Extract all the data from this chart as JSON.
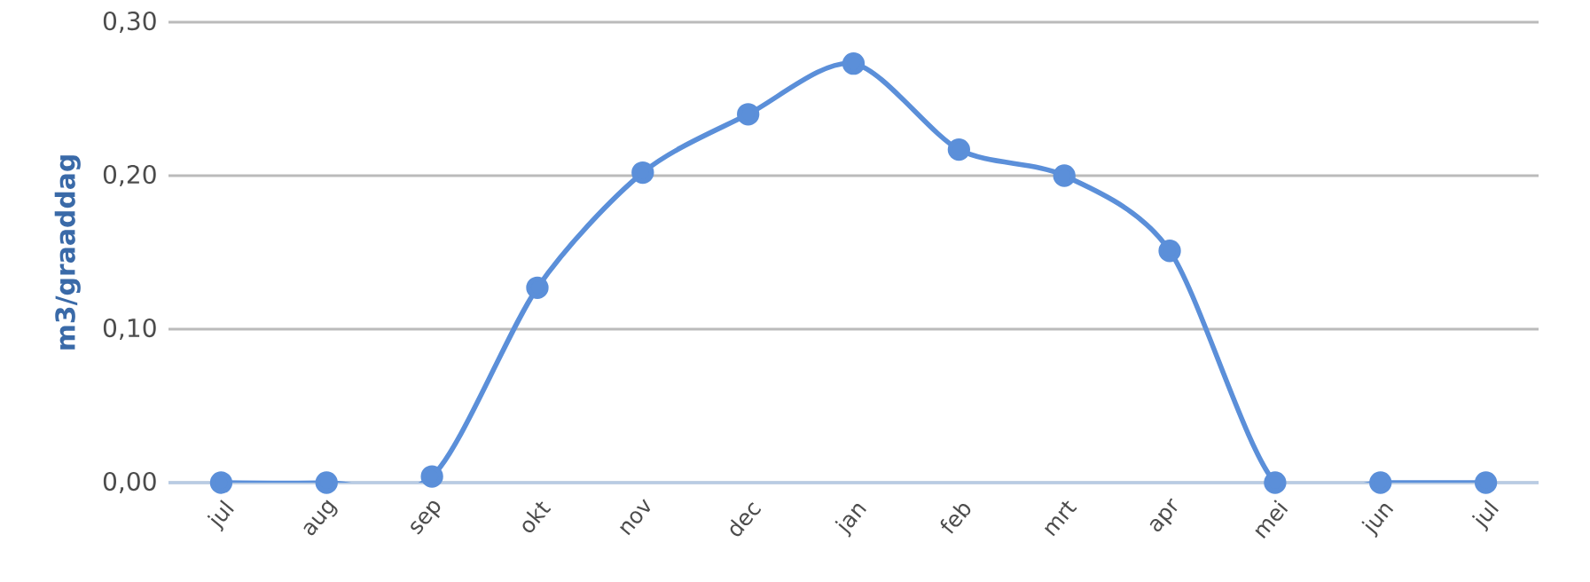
{
  "chart_data": {
    "type": "line",
    "ylabel": "m3/graaddag",
    "categories": [
      "jul",
      "aug",
      "sep",
      "okt",
      "nov",
      "dec",
      "jan",
      "feb",
      "mrt",
      "apr",
      "mei",
      "jun",
      "jul"
    ],
    "series": [
      {
        "color": "#5b8fd9",
        "values": [
          0,
          0,
          0.004,
          0.127,
          0.202,
          0.24,
          0.273,
          0.217,
          0.2,
          0.151,
          0,
          0,
          0
        ]
      }
    ],
    "ylim": [
      0,
      0.3
    ],
    "yticks": [
      {
        "value": 0,
        "label": "0,00"
      },
      {
        "value": 0.1,
        "label": "0,10"
      },
      {
        "value": 0.2,
        "label": "0,20"
      },
      {
        "value": 0.3,
        "label": "0,30"
      }
    ],
    "grid": "y",
    "marker": "circle",
    "line_style": "solid"
  }
}
